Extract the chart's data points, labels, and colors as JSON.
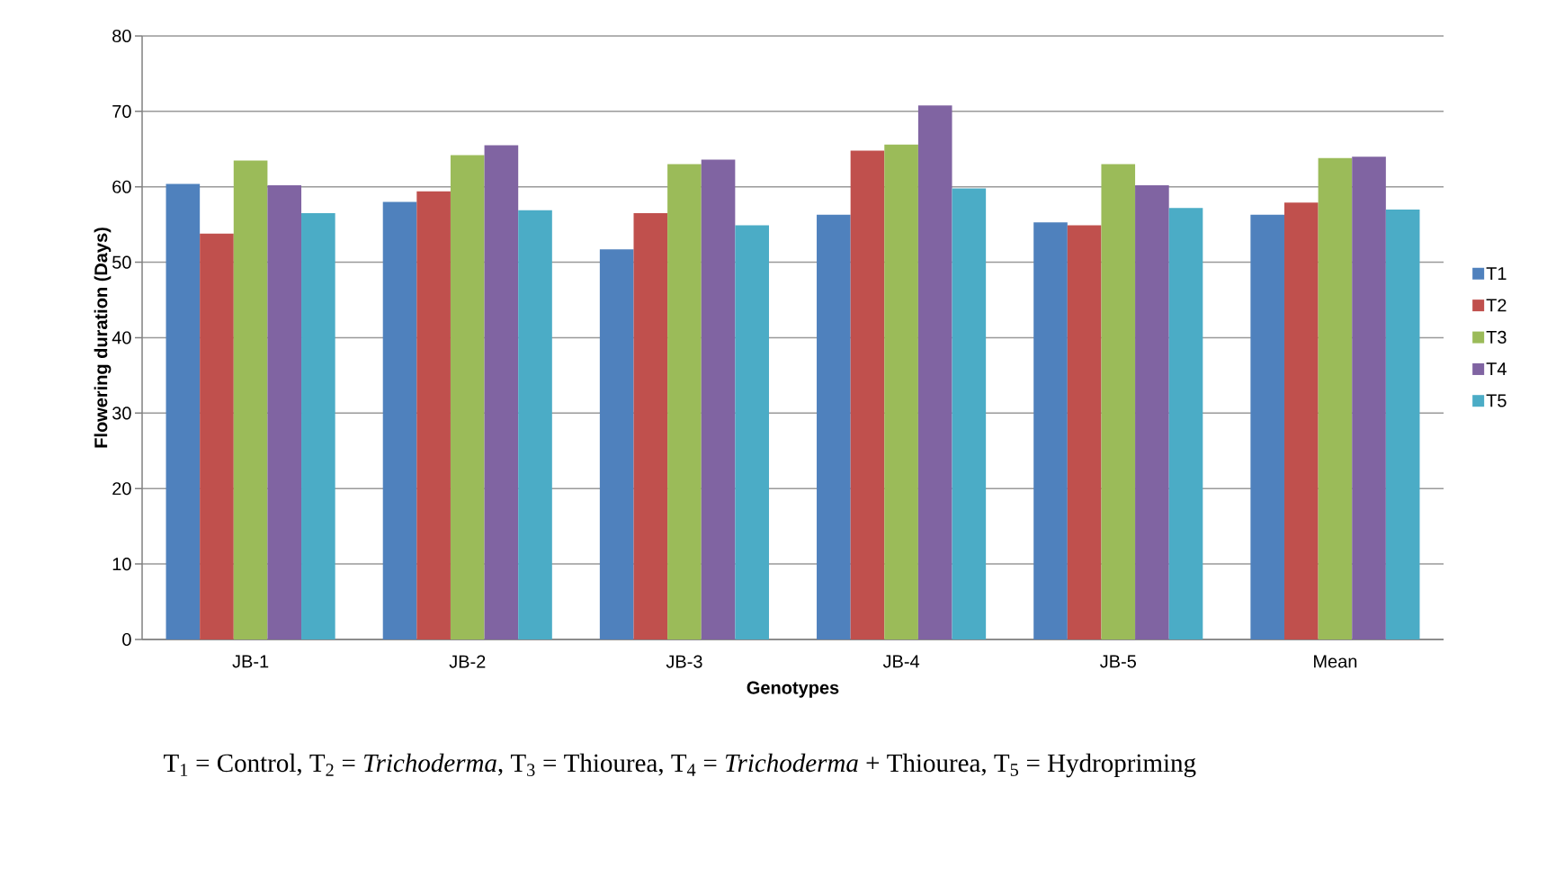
{
  "chart_data": {
    "type": "bar",
    "xlabel": "Genotypes",
    "ylabel": "Flowering duration (Days)",
    "categories": [
      "JB-1",
      "JB-2",
      "JB-3",
      "JB-4",
      "JB-5",
      "Mean"
    ],
    "series": [
      {
        "name": "T1",
        "color": "#4f81bd",
        "values": [
          60.4,
          58.0,
          51.7,
          56.3,
          55.3,
          56.3
        ]
      },
      {
        "name": "T2",
        "color": "#c0504d",
        "values": [
          53.8,
          59.4,
          56.5,
          64.8,
          54.9,
          57.9
        ]
      },
      {
        "name": "T3",
        "color": "#9bbb59",
        "values": [
          63.5,
          64.2,
          63.0,
          65.6,
          63.0,
          63.8
        ]
      },
      {
        "name": "T4",
        "color": "#8064a2",
        "values": [
          60.2,
          65.5,
          63.6,
          70.8,
          60.2,
          64.0
        ]
      },
      {
        "name": "T5",
        "color": "#4bacc6",
        "values": [
          56.5,
          56.9,
          54.9,
          59.8,
          57.2,
          57.0
        ]
      }
    ],
    "ylim": [
      0,
      80
    ],
    "yticks": [
      0,
      10,
      20,
      30,
      40,
      50,
      60,
      70,
      80
    ],
    "grid": "y",
    "legend": "right",
    "annotations": [
      "T$_{1}$ = Control, T$_{2}$ = *Trichoderma*, T$_{3}$ = Thiourea, T$_{4}$ = *Trichoderma* + Thiourea, T$_{5}$ = Hydropriming"
    ]
  }
}
